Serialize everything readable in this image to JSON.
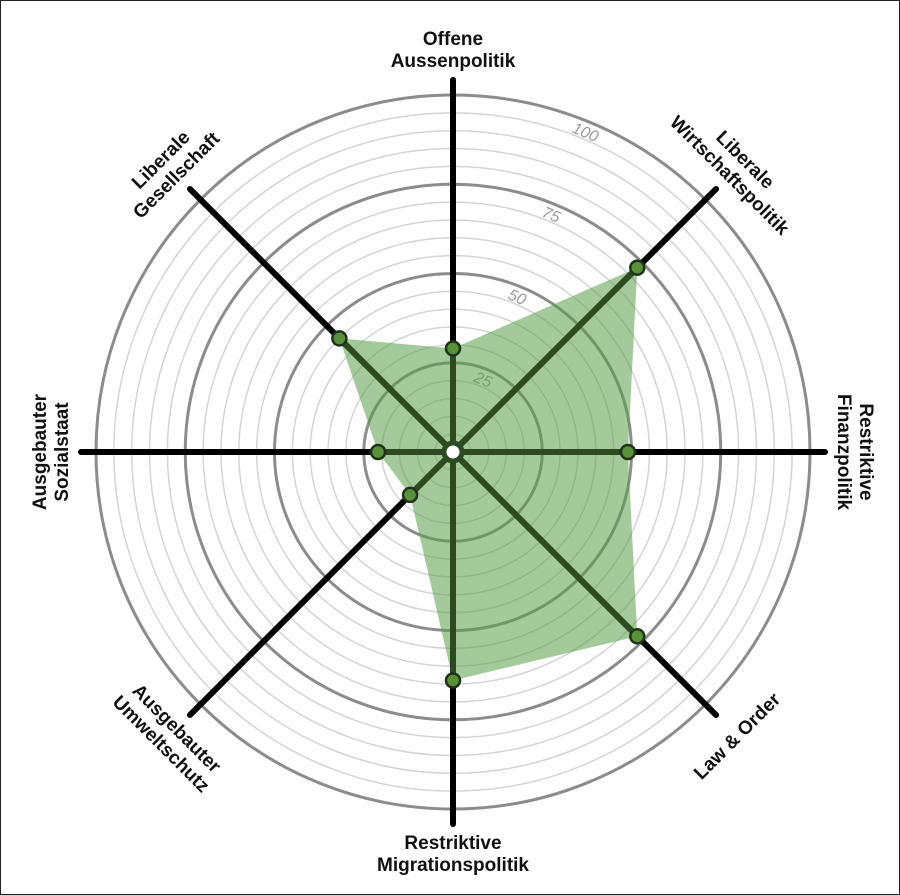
{
  "chart_data": {
    "type": "radar",
    "categories": [
      [
        "Offene",
        "Aussenpolitik"
      ],
      [
        "Liberale",
        "Wirtschaftspolitik"
      ],
      [
        "Restriktive",
        "Finanzpolitik"
      ],
      [
        "Law & Order"
      ],
      [
        "Restriktive",
        "Migrationspolitik"
      ],
      [
        "Ausgebauter",
        "Umweltschutz"
      ],
      [
        "Ausgebauter",
        "Sozialstaat"
      ],
      [
        "Liberale",
        "Gesellschaft"
      ]
    ],
    "values": [
      29,
      73,
      49,
      73,
      64,
      17,
      21,
      45
    ],
    "color": "#5a9e4a",
    "rlim": [
      0,
      100
    ],
    "rticks": [
      25,
      50,
      75,
      100
    ],
    "grid": true
  }
}
